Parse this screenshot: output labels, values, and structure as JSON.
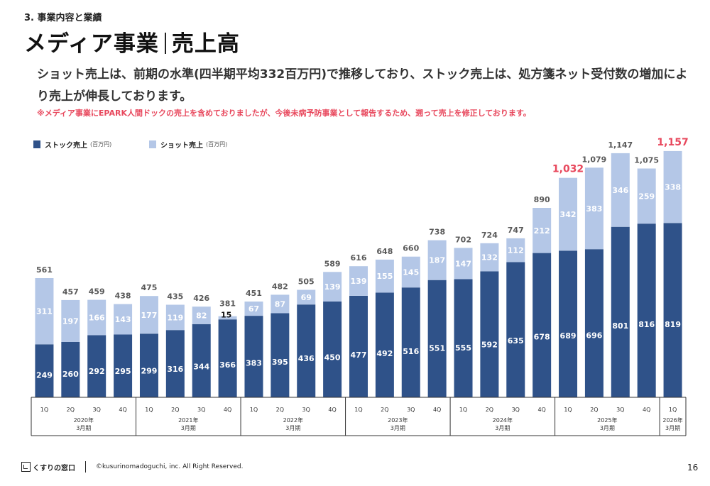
{
  "header": {
    "section": "3. 事業内容と業績",
    "title_left": "メディア事業",
    "title_right": "売上高",
    "description": "ショット売上は、前期の水準(四半期平均332百万円)で推移しており、ストック売上は、処方箋ネット受付数の増加により売上が伸長しております。",
    "note": "※メディア事業にEPARK人間ドックの売上を含めておりましたが、今後未病予防事業として報告するため、遡って売上を修正しております。"
  },
  "legend": {
    "stock_label": "ストック売上",
    "shot_label": "ショット売上",
    "unit": "(百万円)"
  },
  "colors": {
    "stock": "#2f5289",
    "shot": "#b4c7e7",
    "total_text": "#595959",
    "highlight": "#e8485d"
  },
  "chart_data": {
    "type": "bar",
    "stacked": true,
    "categories": [
      "1Q",
      "2Q",
      "3Q",
      "4Q",
      "1Q",
      "2Q",
      "3Q",
      "4Q",
      "1Q",
      "2Q",
      "3Q",
      "4Q",
      "1Q",
      "2Q",
      "3Q",
      "4Q",
      "1Q",
      "2Q",
      "3Q",
      "4Q",
      "1Q",
      "2Q",
      "3Q",
      "4Q",
      "1Q"
    ],
    "series": [
      {
        "name": "ストック売上",
        "values": [
          249,
          260,
          292,
          295,
          299,
          316,
          344,
          366,
          383,
          395,
          436,
          450,
          477,
          492,
          516,
          551,
          555,
          592,
          635,
          678,
          689,
          696,
          801,
          816,
          819
        ]
      },
      {
        "name": "ショット売上",
        "values": [
          311,
          197,
          166,
          143,
          177,
          119,
          82,
          15,
          67,
          87,
          69,
          139,
          139,
          155,
          145,
          187,
          147,
          132,
          112,
          212,
          342,
          383,
          346,
          259,
          338
        ]
      }
    ],
    "totals": [
      "561",
      "457",
      "459",
      "438",
      "475",
      "435",
      "426",
      "381",
      "451",
      "482",
      "505",
      "589",
      "616",
      "648",
      "660",
      "738",
      "702",
      "724",
      "747",
      "890",
      "1,032",
      "1,079",
      "1,147",
      "1,075",
      "1,157"
    ],
    "highlight_totals": [
      20,
      24
    ],
    "groups": [
      {
        "label_year": "2020年",
        "label_period": "3月期",
        "count": 4
      },
      {
        "label_year": "2021年",
        "label_period": "3月期",
        "count": 4
      },
      {
        "label_year": "2022年",
        "label_period": "3月期",
        "count": 4
      },
      {
        "label_year": "2023年",
        "label_period": "3月期",
        "count": 4
      },
      {
        "label_year": "2024年",
        "label_period": "3月期",
        "count": 4
      },
      {
        "label_year": "2025年",
        "label_period": "3月期",
        "count": 4
      },
      {
        "label_year": "2026年",
        "label_period": "3月期",
        "count": 1
      }
    ],
    "ylim": [
      0,
      1200
    ]
  },
  "footer": {
    "logo_text": "くすりの窓口",
    "copyright": "©kusurinomadoguchi, inc. All Right Reserved.",
    "page": "16"
  }
}
